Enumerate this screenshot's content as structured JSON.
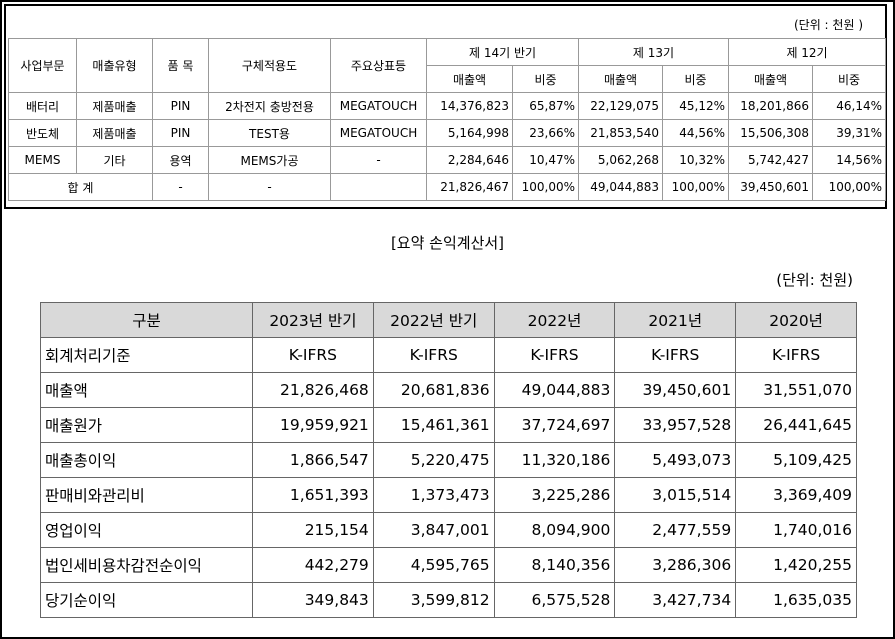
{
  "top_table": {
    "unit": "(단위 : 천원 )",
    "header_top": [
      "사업부문",
      "매출유형",
      "품  목",
      "구체적용도",
      "주요상표등",
      "제 14기 반기",
      "제 13기",
      "제 12기"
    ],
    "header_sub": [
      "매출액",
      "비중",
      "매출액",
      "비중",
      "매출액",
      "비중"
    ],
    "rows": [
      [
        "배터리",
        "제품매출",
        "PIN",
        "2차전지 충방전용",
        "MEGATOUCH",
        "14,376,823",
        "65,87%",
        "22,129,075",
        "45,12%",
        "18,201,866",
        "46,14%"
      ],
      [
        "반도체",
        "제품매출",
        "PIN",
        "TEST용",
        "MEGATOUCH",
        "5,164,998",
        "23,66%",
        "21,853,540",
        "44,56%",
        "15,506,308",
        "39,31%"
      ],
      [
        "MEMS",
        "기타",
        "용역",
        "MEMS가공",
        "-",
        "2,284,646",
        "10,47%",
        "5,062,268",
        "10,32%",
        "5,742,427",
        "14,56%"
      ]
    ],
    "total": {
      "label": "합  계",
      "item": "-",
      "usage": "-",
      "amounts": [
        "21,826,467",
        "100,00%",
        "49,044,883",
        "100,00%",
        "39,450,601",
        "100,00%"
      ]
    }
  },
  "summary": {
    "title": "[요약 손익계산서]",
    "unit": "(단위: 천원)",
    "header": [
      "구분",
      "2023년 반기",
      "2022년 반기",
      "2022년",
      "2021년",
      "2020년"
    ],
    "rows": [
      [
        "회계처리기준",
        "K-IFRS",
        "K-IFRS",
        "K-IFRS",
        "K-IFRS",
        "K-IFRS"
      ],
      [
        "매출액",
        "21,826,468",
        "20,681,836",
        "49,044,883",
        "39,450,601",
        "31,551,070"
      ],
      [
        "매출원가",
        "19,959,921",
        "15,461,361",
        "37,724,697",
        "33,957,528",
        "26,441,645"
      ],
      [
        "매출총이익",
        "1,866,547",
        "5,220,475",
        "11,320,186",
        "5,493,073",
        "5,109,425"
      ],
      [
        "판매비와관리비",
        "1,651,393",
        "1,373,473",
        "3,225,286",
        "3,015,514",
        "3,369,409"
      ],
      [
        "영업이익",
        "215,154",
        "3,847,001",
        "8,094,900",
        "2,477,559",
        "1,740,016"
      ],
      [
        "법인세비용차감전순이익",
        "442,279",
        "4,595,765",
        "8,140,356",
        "3,286,306",
        "1,420,255"
      ],
      [
        "당기순이익",
        "349,843",
        "3,599,812",
        "6,575,528",
        "3,427,734",
        "1,635,035"
      ]
    ]
  }
}
